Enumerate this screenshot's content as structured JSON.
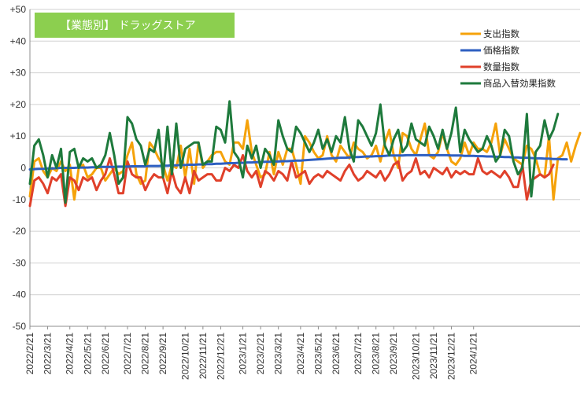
{
  "chart_data": {
    "type": "line",
    "title": "【業態別】 ドラッグストア",
    "xlabel": "",
    "ylabel": "",
    "ylim": [
      -50,
      50
    ],
    "yticks": [
      "+50",
      "+40",
      "+30",
      "+20",
      "+10",
      "0",
      "-10",
      "-20",
      "-30",
      "-40",
      "-50"
    ],
    "x_tick_labels": [
      "2022/2/21",
      "2022/3/21",
      "2022/4/21",
      "2022/5/21",
      "2022/6/21",
      "2022/7/21",
      "2022/8/21",
      "2022/9/21",
      "2022/10/21",
      "2022/11/21",
      "2022/12/21",
      "2023/1/21",
      "2023/2/21",
      "2023/3/21",
      "2023/4/21",
      "2023/5/21",
      "2023/6/21",
      "2023/7/21",
      "2023/8/21",
      "2023/9/21",
      "2023/10/21",
      "2023/11/21",
      "2023/12/21",
      "2024/1/21"
    ],
    "x_start": "2022/2/21",
    "x_interval": "1 week",
    "grid": "horizontal",
    "legend_position": "top-right",
    "series": [
      {
        "name": "支出指数",
        "color": "#f5a20a",
        "values": [
          -9,
          2,
          3,
          -1,
          -3,
          0,
          -1,
          2,
          -1,
          1,
          -10,
          0,
          1,
          -3,
          -2,
          0,
          0,
          -4,
          -2,
          0,
          -2,
          -1,
          4,
          8,
          -2,
          -5,
          -4,
          8,
          6,
          3,
          1,
          -4,
          1,
          0,
          7,
          -3,
          6,
          -5,
          8,
          0,
          2,
          4,
          5,
          5,
          2,
          1,
          8,
          8,
          6,
          15,
          5,
          1,
          -3,
          -2,
          5,
          -2,
          5,
          1,
          6,
          6,
          1,
          -5,
          10,
          8,
          5,
          3,
          4,
          10,
          4,
          2,
          7,
          5,
          3,
          8,
          6,
          5,
          3,
          4,
          7,
          2,
          8,
          12,
          4,
          0,
          11,
          10,
          6,
          4,
          9,
          14,
          4,
          3,
          5,
          11,
          6,
          2,
          1,
          3,
          8,
          4,
          8,
          6,
          6,
          5,
          8,
          14,
          4,
          9,
          6,
          3,
          2,
          1,
          7,
          6,
          3,
          -2,
          -3,
          10,
          -10,
          3,
          4,
          8,
          2,
          7,
          11
        ]
      },
      {
        "name": "価格指数",
        "color": "#2e5fc1",
        "values": [
          -0.5,
          -0.4,
          -0.3,
          -0.3,
          -0.2,
          -0.2,
          -0.1,
          0,
          0,
          0,
          0,
          0.1,
          0.1,
          0.1,
          0.2,
          0.2,
          0.3,
          0.3,
          0.3,
          0.3,
          0.4,
          0.4,
          0.4,
          0.5,
          0.5,
          0.5,
          0.5,
          0.6,
          0.6,
          0.6,
          0.7,
          0.7,
          0.8,
          0.8,
          0.9,
          0.9,
          1,
          1,
          1.1,
          1.1,
          1.2,
          1.2,
          1.3,
          1.3,
          1.4,
          1.5,
          1.5,
          1.6,
          1.6,
          1.7,
          1.7,
          1.8,
          1.8,
          1.9,
          1.9,
          2,
          2,
          2.1,
          2.1,
          2.2,
          2.3,
          2.3,
          2.4,
          2.5,
          2.6,
          2.7,
          2.8,
          2.9,
          3,
          3.1,
          3.2,
          3.2,
          3.3,
          3.4,
          3.4,
          3.5,
          3.6,
          3.6,
          3.7,
          3.7,
          3.8,
          3.9,
          3.9,
          3.9,
          3.9,
          4,
          4,
          4,
          4,
          4,
          4,
          4,
          4,
          4,
          4,
          3.9,
          3.9,
          3.9,
          3.8,
          3.8,
          3.8,
          3.7,
          3.7,
          3.6,
          3.6,
          3.5,
          3.5,
          3.4,
          3.4,
          3.3,
          3.3,
          3.2,
          3.2,
          3.1,
          3,
          3,
          2.9,
          2.9,
          2.8,
          2.8,
          2.7,
          2.7
        ]
      },
      {
        "name": "数量指数",
        "color": "#e0402a",
        "values": [
          -12,
          -4,
          -3,
          -5,
          -8,
          -3,
          -4,
          -2,
          -12,
          -3,
          -4,
          -7,
          -3,
          -4,
          -3,
          -7,
          -4,
          -2,
          3,
          -2,
          -8,
          -8,
          2,
          -2,
          -3,
          -3,
          -7,
          -4,
          -2,
          -3,
          -3,
          -8,
          -1,
          -6,
          -8,
          -3,
          -8,
          -1,
          -4,
          -3,
          -2,
          -2,
          -4,
          -4,
          0,
          -1,
          1,
          0,
          4,
          -1,
          -3,
          -1,
          -6,
          -1,
          -2,
          -4,
          -1,
          -2,
          -4,
          2,
          -3,
          -2,
          -1,
          -5,
          -3,
          -2,
          -3,
          -1,
          -2,
          -3,
          -4,
          -1,
          1,
          -2,
          -4,
          -3,
          -1,
          -2,
          -3,
          -1,
          -4,
          -2,
          1,
          2,
          -4,
          -2,
          -1,
          3,
          -2,
          -1,
          -3,
          0,
          -1,
          -2,
          0,
          -3,
          -1,
          -2,
          -1,
          -2,
          -2,
          3,
          -1,
          -2,
          -1,
          -2,
          -3,
          -1,
          -3,
          -6,
          -6,
          1,
          -10,
          -4,
          -3,
          -2,
          -3,
          -2,
          1
        ]
      },
      {
        "name": "商品入替効果指数",
        "color": "#1e7a3c",
        "values": [
          -5,
          7,
          9,
          4,
          -3,
          4,
          0,
          6,
          -11,
          5,
          6,
          0,
          3,
          2,
          3,
          0,
          1,
          4,
          11,
          4,
          -5,
          -3,
          16,
          14,
          9,
          7,
          1,
          6,
          5,
          12,
          -3,
          13,
          -2,
          14,
          0,
          6,
          7,
          8,
          8,
          1,
          2,
          2,
          13,
          12,
          8,
          21,
          5,
          3,
          -3,
          7,
          3,
          7,
          0,
          6,
          4,
          1,
          15,
          10,
          6,
          5,
          13,
          11,
          8,
          5,
          8,
          12,
          6,
          9,
          5,
          10,
          8,
          16,
          6,
          2,
          15,
          13,
          10,
          7,
          11,
          20,
          7,
          4,
          9,
          12,
          5,
          7,
          14,
          9,
          8,
          7,
          13,
          10,
          6,
          12,
          6,
          11,
          19,
          5,
          12,
          9,
          7,
          5,
          6,
          10,
          7,
          2,
          4,
          12,
          10,
          2,
          -2,
          0,
          17,
          -9,
          5,
          7,
          15,
          9,
          12,
          17
        ]
      }
    ]
  }
}
